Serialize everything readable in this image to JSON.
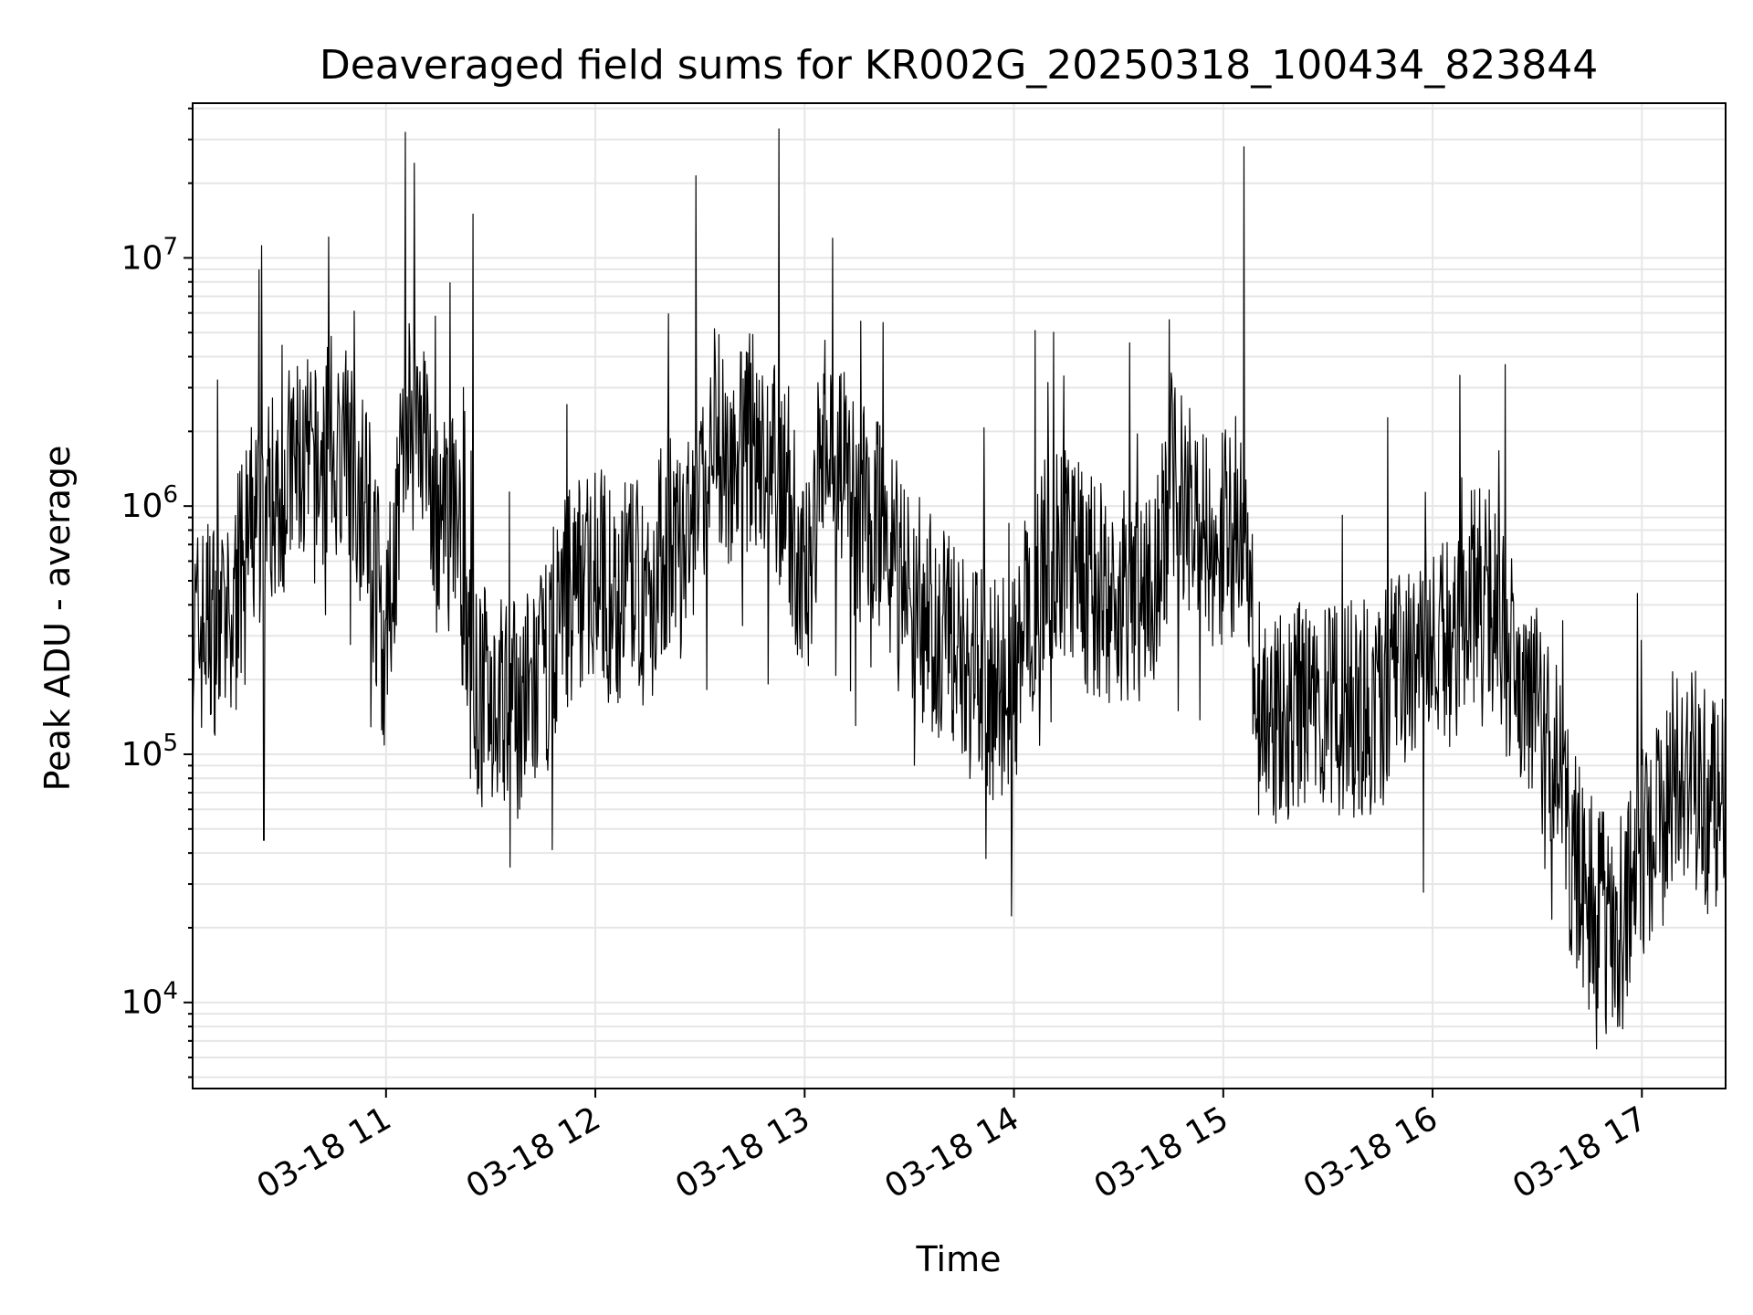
{
  "chart_data": {
    "type": "line",
    "title": "Deaveraged field sums for KR002G_20250318_100434_823844",
    "xlabel": "Time",
    "ylabel": "Peak ADU - average",
    "y_scale": "log",
    "ylim": [
      4500,
      42000000
    ],
    "xlim": [
      "2025-03-18T10:04:34",
      "2025-03-18T17:24:00"
    ],
    "grid": true,
    "line_color": "#000000",
    "x_ticks": [
      {
        "t": "2025-03-18T11:00",
        "label": "03-18 11"
      },
      {
        "t": "2025-03-18T12:00",
        "label": "03-18 12"
      },
      {
        "t": "2025-03-18T13:00",
        "label": "03-18 13"
      },
      {
        "t": "2025-03-18T14:00",
        "label": "03-18 14"
      },
      {
        "t": "2025-03-18T15:00",
        "label": "03-18 15"
      },
      {
        "t": "2025-03-18T16:00",
        "label": "03-18 16"
      },
      {
        "t": "2025-03-18T17:00",
        "label": "03-18 17"
      }
    ],
    "y_ticks": [
      {
        "value": 10000,
        "base": "10",
        "exp": "4"
      },
      {
        "value": 100000,
        "base": "10",
        "exp": "5"
      },
      {
        "value": 1000000,
        "base": "10",
        "exp": "6"
      },
      {
        "value": 10000000,
        "base": "10",
        "exp": "7"
      }
    ],
    "series": [
      {
        "x": [
          "2025-03-18T10:05",
          "2025-03-18T10:10",
          "2025-03-18T10:15",
          "2025-03-18T10:20",
          "2025-03-18T10:25",
          "2025-03-18T10:30",
          "2025-03-18T10:35",
          "2025-03-18T10:40",
          "2025-03-18T10:45",
          "2025-03-18T10:50",
          "2025-03-18T10:55",
          "2025-03-18T11:00",
          "2025-03-18T11:05",
          "2025-03-18T11:10",
          "2025-03-18T11:15",
          "2025-03-18T11:20",
          "2025-03-18T11:25",
          "2025-03-18T11:30",
          "2025-03-18T11:35",
          "2025-03-18T11:40",
          "2025-03-18T11:45",
          "2025-03-18T11:50",
          "2025-03-18T11:55",
          "2025-03-18T12:00",
          "2025-03-18T12:05",
          "2025-03-18T12:10",
          "2025-03-18T12:15",
          "2025-03-18T12:20",
          "2025-03-18T12:25",
          "2025-03-18T12:30",
          "2025-03-18T12:35",
          "2025-03-18T12:40",
          "2025-03-18T12:45",
          "2025-03-18T12:50",
          "2025-03-18T12:55",
          "2025-03-18T13:00",
          "2025-03-18T13:05",
          "2025-03-18T13:10",
          "2025-03-18T13:15",
          "2025-03-18T13:20",
          "2025-03-18T13:25",
          "2025-03-18T13:30",
          "2025-03-18T13:35",
          "2025-03-18T13:40",
          "2025-03-18T13:45",
          "2025-03-18T13:50",
          "2025-03-18T13:55",
          "2025-03-18T14:00",
          "2025-03-18T14:05",
          "2025-03-18T14:10",
          "2025-03-18T14:15",
          "2025-03-18T14:20",
          "2025-03-18T14:25",
          "2025-03-18T14:30",
          "2025-03-18T14:35",
          "2025-03-18T14:40",
          "2025-03-18T14:45",
          "2025-03-18T14:50",
          "2025-03-18T14:55",
          "2025-03-18T15:00",
          "2025-03-18T15:05",
          "2025-03-18T15:10",
          "2025-03-18T15:15",
          "2025-03-18T15:20",
          "2025-03-18T15:25",
          "2025-03-18T15:30",
          "2025-03-18T15:35",
          "2025-03-18T15:40",
          "2025-03-18T15:45",
          "2025-03-18T15:50",
          "2025-03-18T15:55",
          "2025-03-18T16:00",
          "2025-03-18T16:05",
          "2025-03-18T16:10",
          "2025-03-18T16:15",
          "2025-03-18T16:20",
          "2025-03-18T16:25",
          "2025-03-18T16:30",
          "2025-03-18T16:35",
          "2025-03-18T16:40",
          "2025-03-18T16:45",
          "2025-03-18T16:50",
          "2025-03-18T16:55",
          "2025-03-18T17:00",
          "2025-03-18T17:05",
          "2025-03-18T17:10",
          "2025-03-18T17:15",
          "2025-03-18T17:20"
        ],
        "y": [
          300000,
          350000,
          280000,
          700000,
          1000000,
          1200000,
          1500000,
          1300000,
          1800000,
          1500000,
          900000,
          250000,
          2000000,
          2500000,
          700000,
          1000000,
          160000,
          180000,
          150000,
          160000,
          200000,
          400000,
          500000,
          600000,
          400000,
          500000,
          400000,
          700000,
          600000,
          1000000,
          1800000,
          1500000,
          2000000,
          1500000,
          1200000,
          400000,
          2000000,
          1500000,
          900000,
          1000000,
          700000,
          450000,
          350000,
          300000,
          250000,
          200000,
          180000,
          200000,
          400000,
          600000,
          700000,
          500000,
          450000,
          400000,
          450000,
          400000,
          1200000,
          1000000,
          800000,
          700000,
          1000000,
          150000,
          140000,
          150000,
          160000,
          140000,
          150000,
          160000,
          150000,
          200000,
          230000,
          250000,
          300000,
          400000,
          500000,
          300000,
          200000,
          150000,
          100000,
          40000,
          25000,
          20000,
          20000,
          40000,
          60000,
          100000,
          80000,
          60000
        ]
      }
    ],
    "annotations": [
      {
        "t": "2025-03-18T11:25",
        "value": 15000000
      },
      {
        "t": "2025-03-18T13:08",
        "value": 12000000
      },
      {
        "t": "2025-03-18T15:06",
        "value": 28000000
      },
      {
        "t": "2025-03-18T10:25",
        "value": 45000
      },
      {
        "t": "2025-03-18T16:47",
        "value": 6500
      },
      {
        "t": "2025-03-18T13:52",
        "value": 38000
      }
    ]
  }
}
